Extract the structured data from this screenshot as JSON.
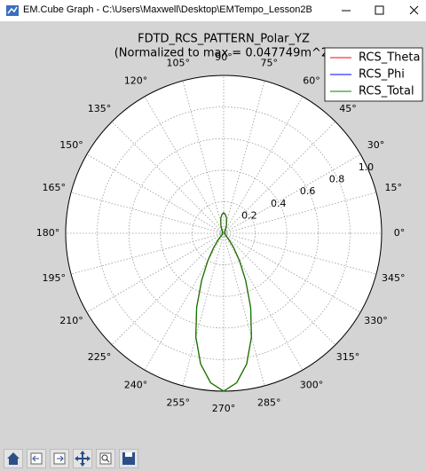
{
  "window": {
    "title": "EM.Cube Graph - C:\\Users\\Maxwell\\Desktop\\EMTempo_Lesson2B"
  },
  "chart_data": {
    "type": "polar",
    "title": "FDTD_RCS_PATTERN_Polar_YZ",
    "subtitle": "(Normalized to max = 0.047749m^2)",
    "xlim": [
      0,
      360
    ],
    "xticks": [
      {
        "value": 0,
        "label": "0°"
      },
      {
        "value": 15,
        "label": "15°"
      },
      {
        "value": 30,
        "label": "30°"
      },
      {
        "value": 45,
        "label": "45°"
      },
      {
        "value": 60,
        "label": "60°"
      },
      {
        "value": 75,
        "label": "75°"
      },
      {
        "value": 90,
        "label": "90°"
      },
      {
        "value": 105,
        "label": "105°"
      },
      {
        "value": 120,
        "label": "120°"
      },
      {
        "value": 135,
        "label": "135°"
      },
      {
        "value": 150,
        "label": "150°"
      },
      {
        "value": 165,
        "label": "165°"
      },
      {
        "value": 180,
        "label": "180°"
      },
      {
        "value": 195,
        "label": "195°"
      },
      {
        "value": 210,
        "label": "210°"
      },
      {
        "value": 225,
        "label": "225°"
      },
      {
        "value": 240,
        "label": "240°"
      },
      {
        "value": 255,
        "label": "255°"
      },
      {
        "value": 270,
        "label": "270°"
      },
      {
        "value": 285,
        "label": "285°"
      },
      {
        "value": 300,
        "label": "300°"
      },
      {
        "value": 315,
        "label": "315°"
      },
      {
        "value": 330,
        "label": "330°"
      },
      {
        "value": 345,
        "label": "345°"
      }
    ],
    "ylim": [
      0,
      1
    ],
    "yticks": [
      0.2,
      0.4,
      0.6,
      0.8,
      {
        "value": 1,
        "label": "1.0"
      }
    ],
    "grid": true,
    "legend": "upper right",
    "x": [
      0,
      5,
      10,
      15,
      20,
      25,
      30,
      35,
      40,
      45,
      50,
      55,
      60,
      65,
      70,
      75,
      80,
      85,
      90,
      95,
      100,
      105,
      110,
      115,
      120,
      125,
      130,
      135,
      140,
      145,
      150,
      155,
      160,
      165,
      170,
      175,
      180,
      185,
      190,
      195,
      200,
      205,
      210,
      215,
      220,
      225,
      230,
      235,
      240,
      245,
      250,
      255,
      260,
      265,
      270,
      275,
      280,
      285,
      290,
      295,
      300,
      305,
      310,
      315,
      320,
      325,
      330,
      335,
      340,
      345,
      350,
      355,
      360
    ],
    "series": [
      {
        "name": "RCS_Theta",
        "color": "#ff0000",
        "values": [
          0.01,
          0.01,
          0.01,
          0.01,
          0.01,
          0.01,
          0.01,
          0.01,
          0.01,
          0.01,
          0.01,
          0.01,
          0.02,
          0.03,
          0.05,
          0.07,
          0.1,
          0.12,
          0.13,
          0.12,
          0.1,
          0.07,
          0.05,
          0.03,
          0.02,
          0.01,
          0.01,
          0.01,
          0.01,
          0.01,
          0.01,
          0.01,
          0.01,
          0.01,
          0.01,
          0.01,
          0.01,
          0.01,
          0.01,
          0.01,
          0.01,
          0.01,
          0.01,
          0.01,
          0.01,
          0.02,
          0.05,
          0.11,
          0.2,
          0.33,
          0.5,
          0.68,
          0.84,
          0.95,
          1.0,
          0.95,
          0.84,
          0.68,
          0.5,
          0.33,
          0.2,
          0.11,
          0.05,
          0.02,
          0.01,
          0.01,
          0.01,
          0.01,
          0.01,
          0.01,
          0.01,
          0.01,
          0.01
        ]
      },
      {
        "name": "RCS_Phi",
        "color": "#0000ff",
        "values": [
          0,
          0,
          0,
          0,
          0,
          0,
          0,
          0,
          0,
          0,
          0,
          0,
          0,
          0,
          0,
          0,
          0,
          0,
          0,
          0,
          0,
          0,
          0,
          0,
          0,
          0,
          0,
          0,
          0,
          0,
          0,
          0,
          0,
          0,
          0,
          0,
          0,
          0,
          0,
          0,
          0,
          0,
          0,
          0,
          0,
          0,
          0,
          0,
          0,
          0,
          0,
          0,
          0,
          0,
          0,
          0,
          0,
          0,
          0,
          0,
          0,
          0,
          0,
          0,
          0,
          0,
          0,
          0,
          0,
          0,
          0,
          0,
          0
        ]
      },
      {
        "name": "RCS_Total",
        "color": "#008000",
        "values": [
          0.01,
          0.01,
          0.01,
          0.01,
          0.01,
          0.01,
          0.01,
          0.01,
          0.01,
          0.01,
          0.01,
          0.01,
          0.02,
          0.03,
          0.05,
          0.07,
          0.1,
          0.12,
          0.13,
          0.12,
          0.1,
          0.07,
          0.05,
          0.03,
          0.02,
          0.01,
          0.01,
          0.01,
          0.01,
          0.01,
          0.01,
          0.01,
          0.01,
          0.01,
          0.01,
          0.01,
          0.01,
          0.01,
          0.01,
          0.01,
          0.01,
          0.01,
          0.01,
          0.01,
          0.01,
          0.02,
          0.05,
          0.11,
          0.2,
          0.33,
          0.5,
          0.68,
          0.84,
          0.95,
          1.0,
          0.95,
          0.84,
          0.68,
          0.5,
          0.33,
          0.2,
          0.11,
          0.05,
          0.02,
          0.01,
          0.01,
          0.01,
          0.01,
          0.01,
          0.01,
          0.01,
          0.01,
          0.01
        ]
      }
    ]
  }
}
